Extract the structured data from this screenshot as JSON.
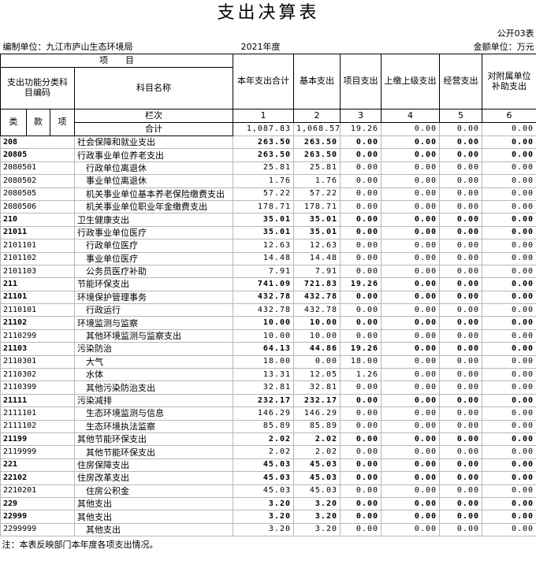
{
  "header": {
    "title": "支出决算表",
    "sheet_no": "公开03表",
    "unit": "编制单位：九江市庐山生态环境局",
    "year": "2021年度",
    "currency": "金额单位：万元"
  },
  "table": {
    "item_label": "项　　目",
    "code_label": "支出功能分类科目编码",
    "name_label": "科目名称",
    "columns": [
      "本年支出合计",
      "基本支出",
      "项目支出",
      "上缴上级支出",
      "经营支出",
      "对附属单位补助支出"
    ],
    "code_parts": [
      "类",
      "款",
      "项"
    ],
    "row_no_label": "栏次",
    "column_numbers": [
      1,
      2,
      3,
      4,
      5,
      6
    ],
    "total": {
      "label": "合计",
      "values": [
        "1,087.83",
        "1,068.57",
        "19.26",
        "0.00",
        "0.00",
        "0.00"
      ]
    },
    "rows": [
      [
        "208",
        "社会保障和就业支出",
        "263.50",
        "263.50",
        "0.00",
        "0.00",
        "0.00",
        "0.00"
      ],
      [
        "20805",
        "行政事业单位养老支出",
        "263.50",
        "263.50",
        "0.00",
        "0.00",
        "0.00",
        "0.00"
      ],
      [
        "2080501",
        "行政单位离退休",
        "25.81",
        "25.81",
        "0.00",
        "0.00",
        "0.00",
        "0.00"
      ],
      [
        "2080502",
        "事业单位离退休",
        "1.76",
        "1.76",
        "0.00",
        "0.00",
        "0.00",
        "0.00"
      ],
      [
        "2080505",
        "机关事业单位基本养老保险缴费支出",
        "57.22",
        "57.22",
        "0.00",
        "0.00",
        "0.00",
        "0.00"
      ],
      [
        "2080506",
        "机关事业单位职业年金缴费支出",
        "178.71",
        "178.71",
        "0.00",
        "0.00",
        "0.00",
        "0.00"
      ],
      [
        "210",
        "卫生健康支出",
        "35.01",
        "35.01",
        "0.00",
        "0.00",
        "0.00",
        "0.00"
      ],
      [
        "21011",
        "行政事业单位医疗",
        "35.01",
        "35.01",
        "0.00",
        "0.00",
        "0.00",
        "0.00"
      ],
      [
        "2101101",
        "行政单位医疗",
        "12.63",
        "12.63",
        "0.00",
        "0.00",
        "0.00",
        "0.00"
      ],
      [
        "2101102",
        "事业单位医疗",
        "14.48",
        "14.48",
        "0.00",
        "0.00",
        "0.00",
        "0.00"
      ],
      [
        "2101103",
        "公务员医疗补助",
        "7.91",
        "7.91",
        "0.00",
        "0.00",
        "0.00",
        "0.00"
      ],
      [
        "211",
        "节能环保支出",
        "741.09",
        "721.83",
        "19.26",
        "0.00",
        "0.00",
        "0.00"
      ],
      [
        "21101",
        "环境保护管理事务",
        "432.78",
        "432.78",
        "0.00",
        "0.00",
        "0.00",
        "0.00"
      ],
      [
        "2110101",
        "行政运行",
        "432.78",
        "432.78",
        "0.00",
        "0.00",
        "0.00",
        "0.00"
      ],
      [
        "21102",
        "环境监测与监察",
        "10.00",
        "10.00",
        "0.00",
        "0.00",
        "0.00",
        "0.00"
      ],
      [
        "2110299",
        "其他环境监测与监察支出",
        "10.00",
        "10.00",
        "0.00",
        "0.00",
        "0.00",
        "0.00"
      ],
      [
        "21103",
        "污染防治",
        "64.13",
        "44.86",
        "19.26",
        "0.00",
        "0.00",
        "0.00"
      ],
      [
        "2110301",
        "大气",
        "18.00",
        "0.00",
        "18.00",
        "0.00",
        "0.00",
        "0.00"
      ],
      [
        "2110302",
        "水体",
        "13.31",
        "12.05",
        "1.26",
        "0.00",
        "0.00",
        "0.00"
      ],
      [
        "2110399",
        "其他污染防治支出",
        "32.81",
        "32.81",
        "0.00",
        "0.00",
        "0.00",
        "0.00"
      ],
      [
        "21111",
        "污染减排",
        "232.17",
        "232.17",
        "0.00",
        "0.00",
        "0.00",
        "0.00"
      ],
      [
        "2111101",
        "生态环境监测与信息",
        "146.29",
        "146.29",
        "0.00",
        "0.00",
        "0.00",
        "0.00"
      ],
      [
        "2111102",
        "生态环境执法监察",
        "85.89",
        "85.89",
        "0.00",
        "0.00",
        "0.00",
        "0.00"
      ],
      [
        "21199",
        "其他节能环保支出",
        "2.02",
        "2.02",
        "0.00",
        "0.00",
        "0.00",
        "0.00"
      ],
      [
        "2119999",
        "其他节能环保支出",
        "2.02",
        "2.02",
        "0.00",
        "0.00",
        "0.00",
        "0.00"
      ],
      [
        "221",
        "住房保障支出",
        "45.03",
        "45.03",
        "0.00",
        "0.00",
        "0.00",
        "0.00"
      ],
      [
        "22102",
        "住房改革支出",
        "45.03",
        "45.03",
        "0.00",
        "0.00",
        "0.00",
        "0.00"
      ],
      [
        "2210201",
        "住房公积金",
        "45.03",
        "45.03",
        "0.00",
        "0.00",
        "0.00",
        "0.00"
      ],
      [
        "229",
        "其他支出",
        "3.20",
        "3.20",
        "0.00",
        "0.00",
        "0.00",
        "0.00"
      ],
      [
        "22999",
        "其他支出",
        "3.20",
        "3.20",
        "0.00",
        "0.00",
        "0.00",
        "0.00"
      ],
      [
        "2299999",
        "其他支出",
        "3.20",
        "3.20",
        "0.00",
        "0.00",
        "0.00",
        "0.00"
      ]
    ]
  },
  "note": "注：本表反映部门本年度各项支出情况。"
}
